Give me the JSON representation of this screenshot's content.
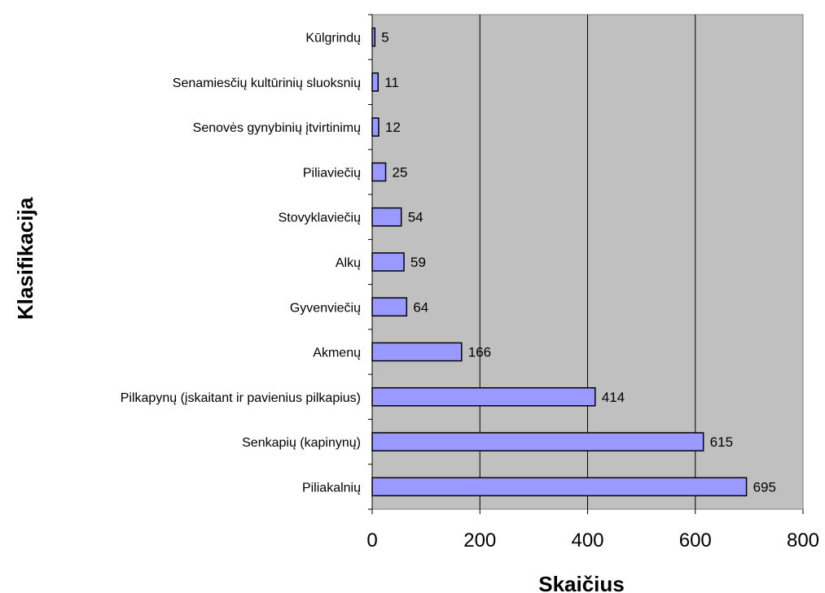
{
  "chart_data": {
    "type": "bar",
    "orientation": "horizontal",
    "categories": [
      "Kūlgrindų",
      "Senamiesčių kultūrinių sluoksnių",
      "Senovės gynybinių įtvirtinimų",
      "Piliaviečių",
      "Stovyklaviečių",
      "Alkų",
      "Gyvenviečių",
      "Akmenų",
      "Pilkapynų (įskaitant ir pavienius pilkapius)",
      "Senkapių (kapinynų)",
      "Piliakalnių"
    ],
    "values": [
      5,
      11,
      12,
      25,
      54,
      59,
      64,
      166,
      414,
      615,
      695
    ],
    "value_labels": [
      "5",
      "11",
      "12",
      "25",
      "54",
      "59",
      "64",
      "166",
      "414",
      "615",
      "695"
    ],
    "xlabel": "Skaičius",
    "ylabel": "Klasifikacija",
    "xlim": [
      0,
      800
    ],
    "xticks": [
      0,
      200,
      400,
      600,
      800
    ],
    "xtick_labels": [
      "0",
      "200",
      "400",
      "600",
      "800"
    ],
    "grid": "vertical",
    "bar_color": "#9999ff",
    "plot_background": "#c0c0c0"
  }
}
